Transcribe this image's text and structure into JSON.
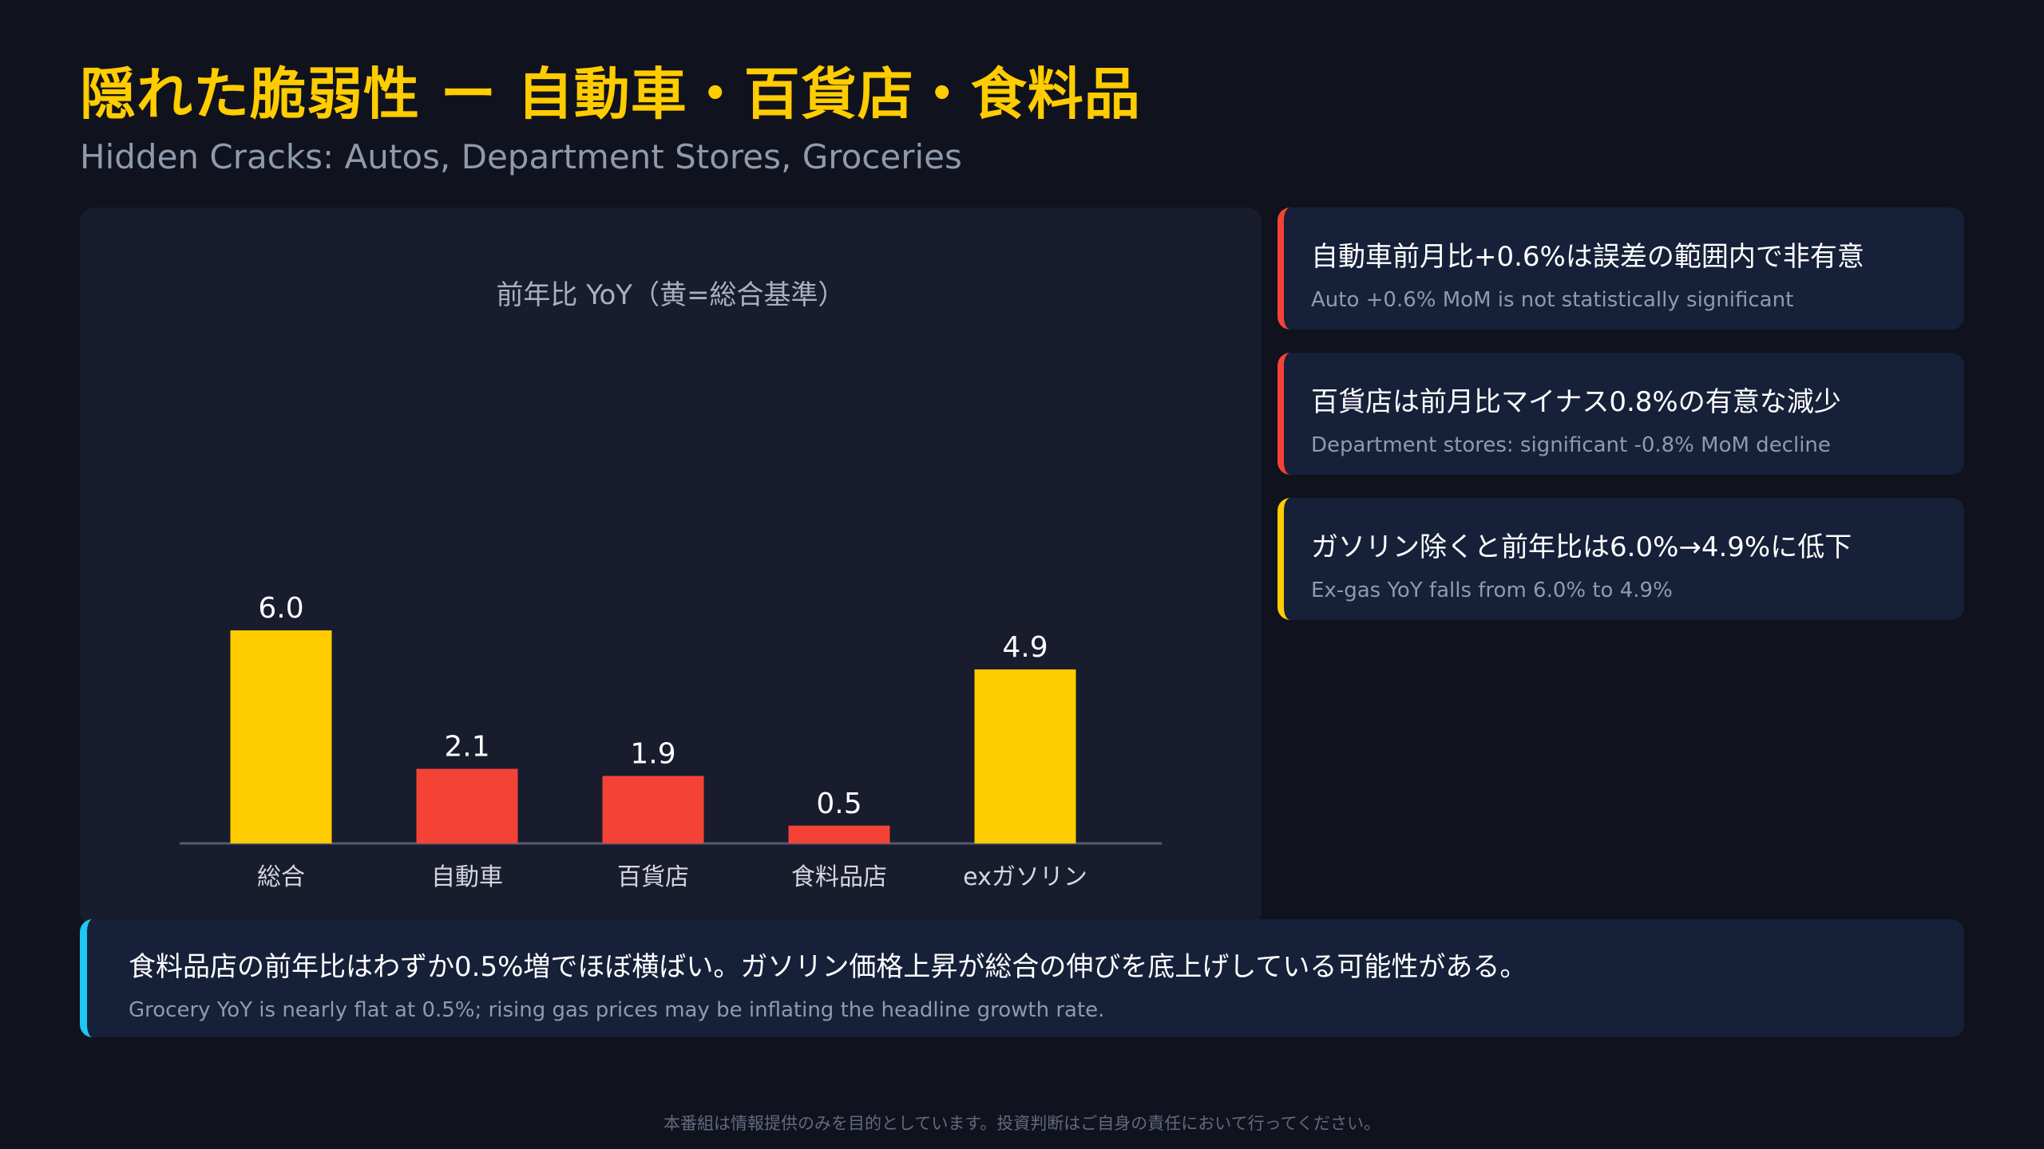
{
  "page": {
    "title": "隠れた脆弱性 ー 自動車・百貨店・食料品",
    "subtitle": "Hidden Cracks: Autos, Department Stores, Groceries"
  },
  "chart_data": {
    "type": "bar",
    "title": "前年比 YoY（黄=総合基準）",
    "categories": [
      "総合",
      "自動車",
      "百貨店",
      "食料品店",
      "exガソリン"
    ],
    "values": [
      6.0,
      2.1,
      1.9,
      0.5,
      4.9
    ],
    "value_labels": [
      "6.0",
      "2.1",
      "1.9",
      "0.5",
      "4.9"
    ],
    "bar_colors": [
      "#ffcc00",
      "#f44336",
      "#f44336",
      "#f44336",
      "#ffcc00"
    ],
    "xlabel": "",
    "ylabel": "",
    "ylim": [
      0,
      10
    ],
    "grid": false,
    "legend": "none"
  },
  "callouts": [
    {
      "jp": "自動車前月比+0.6%は誤差の範囲内で非有意",
      "en": "Auto +0.6% MoM is not statistically significant",
      "accent": "#f44336"
    },
    {
      "jp": "百貨店は前月比マイナス0.8%の有意な減少",
      "en": "Department stores: significant -0.8% MoM decline",
      "accent": "#f44336"
    },
    {
      "jp": "ガソリン除くと前年比は6.0%→4.9%に低下",
      "en": "Ex-gas YoY falls from 6.0% to 4.9%",
      "accent": "#ffcc00"
    }
  ],
  "bottom_note": {
    "jp": "食料品店の前年比はわずか0.5%増でほぼ横ばい。ガソリン価格上昇が総合の伸びを底上げしている可能性がある。",
    "en": "Grocery YoY is nearly flat at 0.5%; rising gas prices may be inflating the headline growth rate.",
    "accent": "#1ec8f0"
  },
  "disclaimer": "本番組は情報提供のみを目的としています。投資判断はご自身の責任において行ってください。"
}
